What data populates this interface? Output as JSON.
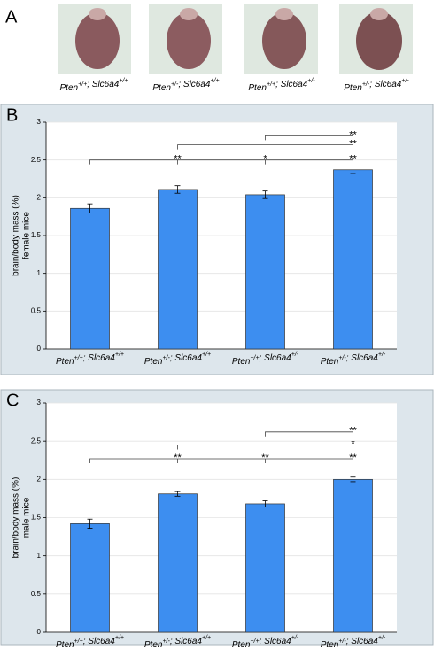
{
  "panel_a": {
    "label": "A",
    "captions": [
      "Pten+/+; Slc6a4+/+",
      "Pten+/-; Slc6a4+/+",
      "Pten+/+; Slc6a4+/-",
      "Pten+/-; Slc6a4+/-"
    ]
  },
  "chart_data": [
    {
      "type": "bar",
      "panel": "B",
      "y_label": [
        "brain/body mass (%)",
        "female mice"
      ],
      "categories": [
        "Pten+/+; Slc6a4+/+",
        "Pten+/-; Slc6a4+/+",
        "Pten+/+; Slc6a4+/-",
        "Pten+/-; Slc6a4+/-"
      ],
      "values": [
        1.86,
        2.11,
        2.04,
        2.37
      ],
      "errors": [
        0.06,
        0.05,
        0.05,
        0.05
      ],
      "color": "#3d8ef0",
      "ylim": [
        0,
        3
      ],
      "yticks": [
        0,
        0.5,
        1,
        1.5,
        2,
        2.5,
        3
      ],
      "grid": true,
      "annotations": [
        {
          "from": 0,
          "to": 3,
          "y": 2.5,
          "labels": [
            {
              "at": 1,
              "text": "**"
            },
            {
              "at": 2,
              "text": "*"
            },
            {
              "at": 3,
              "text": "**"
            }
          ]
        },
        {
          "from": 1,
          "to": 3,
          "y": 2.7,
          "labels": [
            {
              "at": 3,
              "text": "**"
            }
          ]
        },
        {
          "from": 2,
          "to": 3,
          "y": 2.82,
          "labels": [
            {
              "at": 3,
              "text": "**"
            }
          ]
        }
      ]
    },
    {
      "type": "bar",
      "panel": "C",
      "y_label": [
        "brain/body mass (%)",
        "male mice"
      ],
      "categories": [
        "Pten+/+; Slc6a4+/+",
        "Pten+/-; Slc6a4+/+",
        "Pten+/+; Slc6a4+/-",
        "Pten+/-; Slc6a4+/-"
      ],
      "values": [
        1.42,
        1.81,
        1.68,
        2.0
      ],
      "errors": [
        0.06,
        0.03,
        0.04,
        0.03
      ],
      "color": "#3d8ef0",
      "ylim": [
        0,
        3
      ],
      "yticks": [
        0,
        0.5,
        1,
        1.5,
        2,
        2.5,
        3
      ],
      "grid": true,
      "annotations": [
        {
          "from": 0,
          "to": 3,
          "y": 2.27,
          "labels": [
            {
              "at": 1,
              "text": "**"
            },
            {
              "at": 2,
              "text": "**"
            },
            {
              "at": 3,
              "text": "**"
            }
          ]
        },
        {
          "from": 1,
          "to": 3,
          "y": 2.45,
          "labels": [
            {
              "at": 3,
              "text": "*"
            }
          ]
        },
        {
          "from": 2,
          "to": 3,
          "y": 2.62,
          "labels": [
            {
              "at": 3,
              "text": "**"
            }
          ]
        }
      ]
    }
  ]
}
